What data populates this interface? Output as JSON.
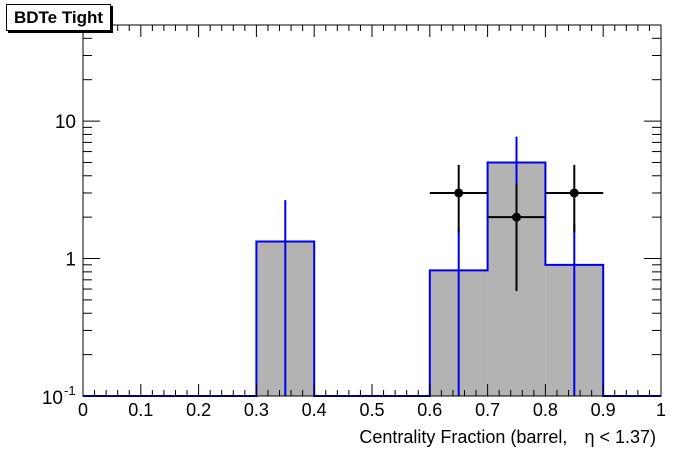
{
  "chart_data": {
    "type": "bar",
    "title": "BDTe Tight",
    "xlabel_text": "Centrality Fraction (barrel,",
    "xlabel_math": "η < 1.37)",
    "xlim": [
      0,
      1
    ],
    "ylim": [
      0.1,
      50
    ],
    "ylog": true,
    "x_ticks": [
      "0",
      "0.1",
      "0.2",
      "0.3",
      "0.4",
      "0.5",
      "0.6",
      "0.7",
      "0.8",
      "0.9",
      "1"
    ],
    "y_ticks": [
      {
        "value": 1,
        "label": "1"
      },
      {
        "value": 10,
        "label": "10"
      }
    ],
    "y_tick_bottom": {
      "value": 0.1,
      "base": "10",
      "exp": "-1"
    },
    "bin_edges": [
      0,
      0.1,
      0.2,
      0.3,
      0.4,
      0.5,
      0.6,
      0.7,
      0.8,
      0.9,
      1.0
    ],
    "series": [
      {
        "kind": "histogram",
        "values": [
          0,
          0,
          0,
          1.33,
          0,
          0,
          0.82,
          5.0,
          0.9,
          0
        ],
        "errors": [
          0,
          0,
          0,
          1.33,
          0,
          0,
          0.82,
          2.7,
          0.9,
          0
        ],
        "fill_color": "#b3b3b3",
        "line_color": "#0000ee"
      },
      {
        "kind": "points",
        "x": [
          0.65,
          0.75,
          0.85
        ],
        "y": [
          3.0,
          2.0,
          3.0
        ],
        "x_err": [
          0.05,
          0.05,
          0.05
        ],
        "y_low": [
          1.55,
          0.58,
          1.55
        ],
        "y_high": [
          4.8,
          3.5,
          4.8
        ],
        "color": "#000000"
      }
    ],
    "grid": false
  }
}
